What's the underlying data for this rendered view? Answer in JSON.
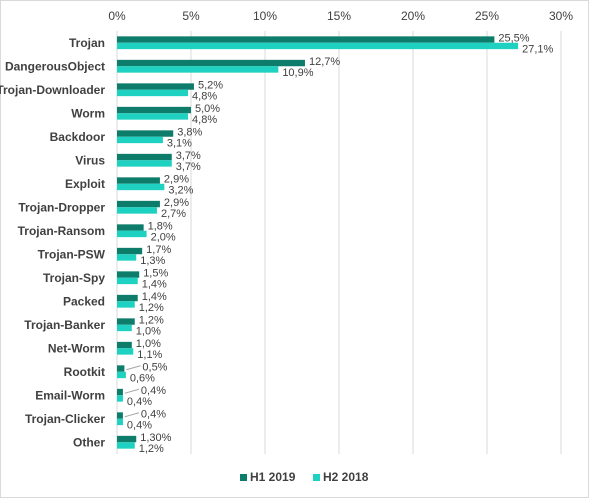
{
  "chart_data": {
    "type": "bar",
    "orientation": "horizontal",
    "categories": [
      "Trojan",
      "DangerousObject",
      "Trojan-Downloader",
      "Worm",
      "Backdoor",
      "Virus",
      "Exploit",
      "Trojan-Dropper",
      "Trojan-Ransom",
      "Trojan-PSW",
      "Trojan-Spy",
      "Packed",
      "Trojan-Banker",
      "Net-Worm",
      "Rootkit",
      "Email-Worm",
      "Trojan-Clicker",
      "Other"
    ],
    "series": [
      {
        "name": "H1 2019",
        "color": "#0e7c6b",
        "values": [
          25.5,
          12.7,
          5.2,
          5.0,
          3.8,
          3.7,
          2.9,
          2.9,
          1.8,
          1.7,
          1.5,
          1.4,
          1.2,
          1.0,
          0.5,
          0.4,
          0.4,
          1.3
        ],
        "labels": [
          "25,5%",
          "12,7%",
          "5,2%",
          "5,0%",
          "3,8%",
          "3,7%",
          "2,9%",
          "2,9%",
          "1,8%",
          "1,7%",
          "1,5%",
          "1,4%",
          "1,2%",
          "1,0%",
          "0,5%",
          "0,4%",
          "0,4%",
          "1,30%"
        ]
      },
      {
        "name": "H2 2018",
        "color": "#1fd1c1",
        "values": [
          27.1,
          10.9,
          4.8,
          4.8,
          3.1,
          3.7,
          3.2,
          2.7,
          2.0,
          1.3,
          1.4,
          1.2,
          1.0,
          1.1,
          0.6,
          0.4,
          0.4,
          1.2
        ],
        "labels": [
          "27,1%",
          "10,9%",
          "4,8%",
          "4,8%",
          "3,1%",
          "3,7%",
          "3,2%",
          "2,7%",
          "2,0%",
          "1,3%",
          "1,4%",
          "1,2%",
          "1,0%",
          "1,1%",
          "0,6%",
          "0,4%",
          "0,4%",
          "1,2%"
        ]
      }
    ],
    "xlim": [
      0,
      30
    ],
    "xticks": [
      "0%",
      "5%",
      "10%",
      "15%",
      "20%",
      "25%",
      "30%"
    ],
    "xaxis_position": "top",
    "grid": true,
    "legend_position": "bottom-center"
  }
}
